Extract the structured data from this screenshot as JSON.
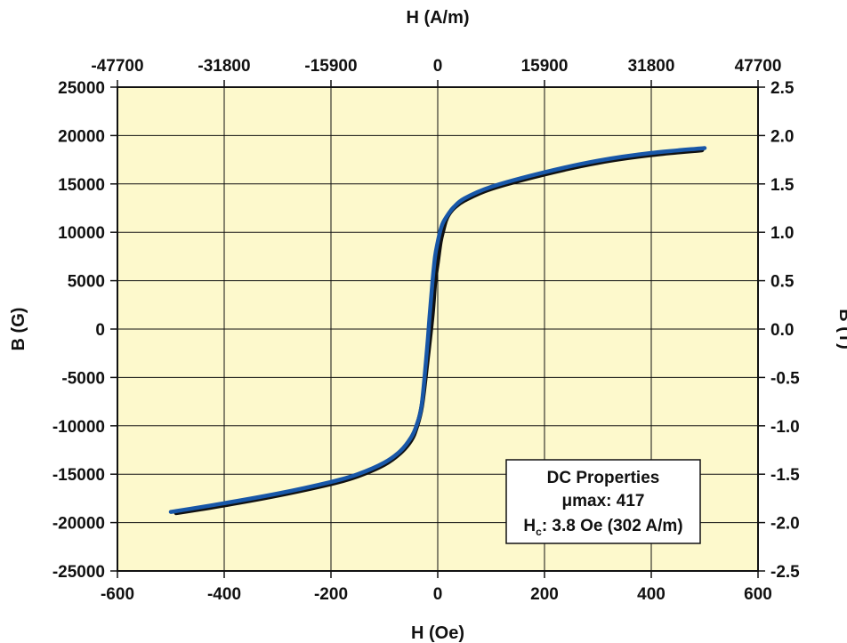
{
  "chart_data": {
    "type": "line",
    "title": "",
    "xlabel": "H (Oe)",
    "x2label": "H (A/m)",
    "ylabel": "B (G)",
    "y2label": "B (T)",
    "xlim": [
      -600,
      600
    ],
    "ylim": [
      -25000,
      25000
    ],
    "x_ticks": [
      "-600",
      "-400",
      "-200",
      "0",
      "200",
      "400",
      "600"
    ],
    "x_tick_values": [
      -600,
      -400,
      -200,
      0,
      200,
      400,
      600
    ],
    "x2_ticks": [
      "-47700",
      "-31800",
      "-15900",
      "0",
      "15900",
      "31800",
      "47700"
    ],
    "y_ticks": [
      "25000",
      "20000",
      "15000",
      "10000",
      "5000",
      "0",
      "-5000",
      "-10000",
      "-15000",
      "-20000",
      "-25000"
    ],
    "y_tick_values": [
      25000,
      20000,
      15000,
      10000,
      5000,
      0,
      -5000,
      -10000,
      -15000,
      -20000,
      -25000
    ],
    "y2_ticks": [
      "2.5",
      "2.0",
      "1.5",
      "1.0",
      "0.5",
      "0.0",
      "-0.5",
      "-1.0",
      "-1.5",
      "-2.0",
      "-2.5"
    ],
    "grid": true,
    "background_color": "#fdf9cc",
    "series": [
      {
        "name": "",
        "color": "#111111",
        "x": [
          -490,
          -400,
          -300,
          -200,
          -150,
          -100,
          -70,
          -50,
          -40,
          -30,
          -20,
          -10,
          -5,
          0,
          5,
          10,
          15,
          20,
          30,
          50,
          100,
          200,
          300,
          400,
          495
        ],
        "y": [
          -19000,
          -18200,
          -17200,
          -16000,
          -15200,
          -14000,
          -12800,
          -11500,
          -10200,
          -8000,
          -3500,
          1500,
          5000,
          7000,
          9000,
          10200,
          11200,
          11800,
          12500,
          13300,
          14500,
          16000,
          17200,
          18000,
          18500
        ]
      },
      {
        "name": "",
        "color": "#1857a8",
        "x": [
          -500,
          -400,
          -300,
          -200,
          -150,
          -100,
          -70,
          -50,
          -40,
          -30,
          -20,
          -15,
          -10,
          -5,
          0,
          5,
          10,
          20,
          30,
          50,
          100,
          200,
          300,
          400,
          500
        ],
        "y": [
          -18900,
          -18000,
          -17000,
          -15800,
          -15000,
          -13800,
          -12600,
          -11200,
          -10000,
          -7800,
          -2000,
          1500,
          4800,
          7500,
          9000,
          10200,
          11000,
          11900,
          12600,
          13500,
          14700,
          16200,
          17400,
          18200,
          18700
        ]
      }
    ],
    "legend_box": {
      "title": "DC Properties",
      "mu_label": "μmax: 417",
      "hc_main": "H",
      "hc_sub": "c",
      "hc_rest": ": 3.8 Oe (302 A/m)",
      "placement": "bottom-right"
    }
  }
}
